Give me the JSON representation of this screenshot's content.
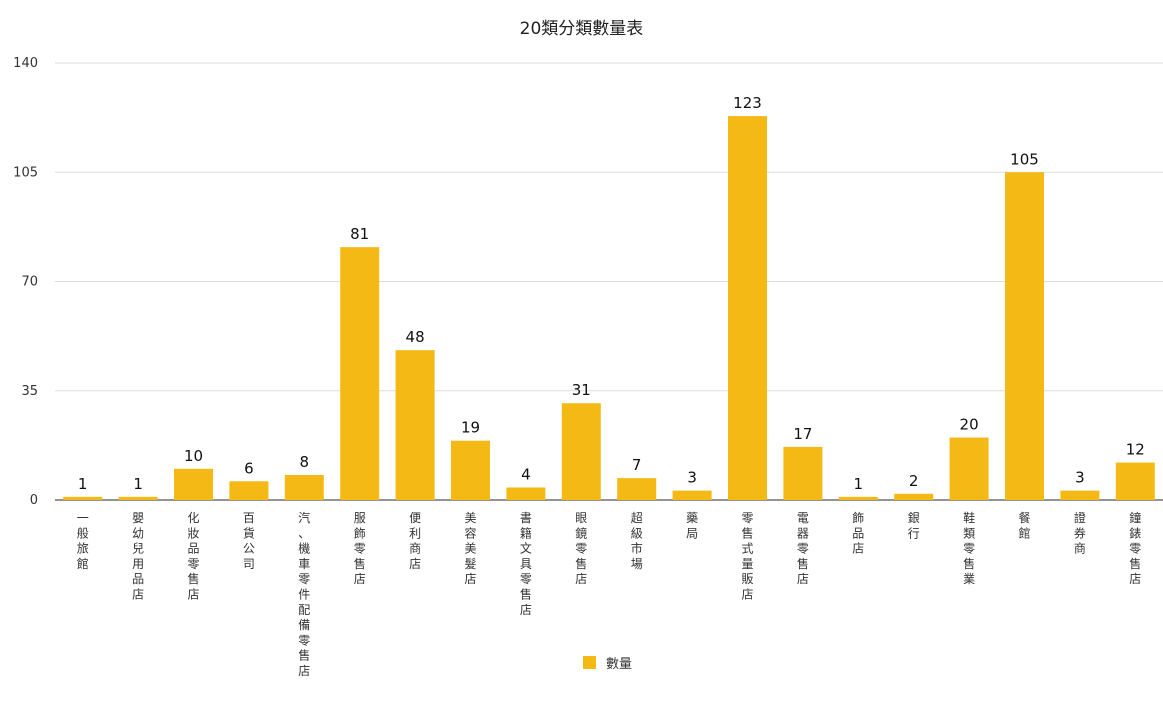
{
  "chart_data": {
    "type": "bar",
    "title": "20類分類數量表",
    "xlabel": "",
    "ylabel": "",
    "ylim": [
      0,
      140
    ],
    "yticks": [
      0,
      35,
      70,
      105,
      140
    ],
    "grid": true,
    "legend_position": "bottom",
    "color": "#F5B916",
    "categories": [
      "一般旅館",
      "嬰幼兒用品店",
      "化妝品零售店",
      "百貨公司",
      "汽、機車零件配備零售店",
      "服飾零售店",
      "便利商店",
      "美容美髮店",
      "書籍文具零售店",
      "眼鏡零售店",
      "超級市場",
      "藥局",
      "零售式量販店",
      "電器零售店",
      "飾品店",
      "銀行",
      "鞋類零售業",
      "餐館",
      "證券商",
      "鐘錶零售店"
    ],
    "series": [
      {
        "name": "數量",
        "values": [
          1,
          1,
          10,
          6,
          8,
          81,
          48,
          19,
          4,
          31,
          7,
          3,
          123,
          17,
          1,
          2,
          20,
          105,
          3,
          12
        ]
      }
    ]
  }
}
